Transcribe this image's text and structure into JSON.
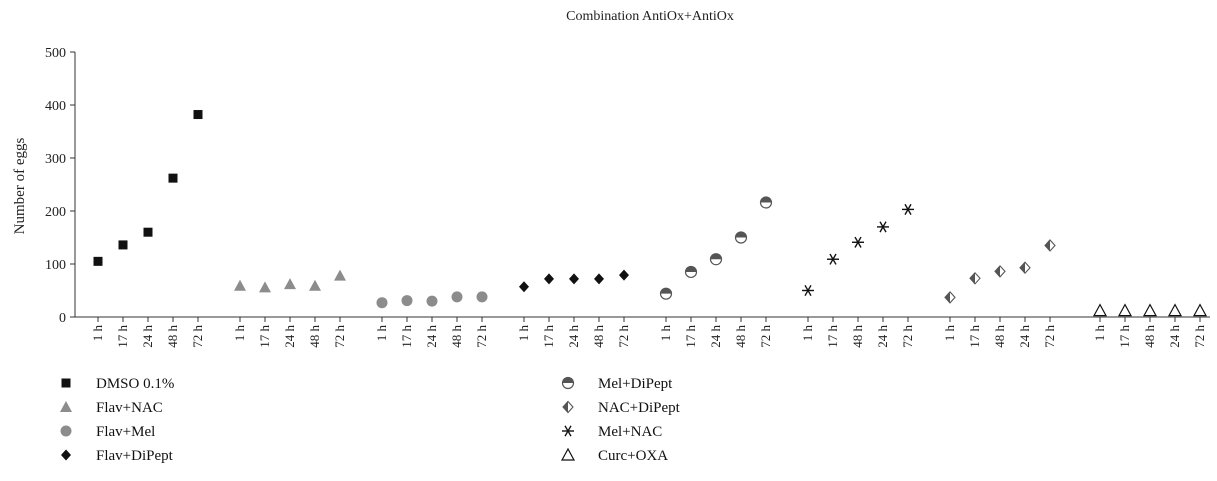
{
  "chart_data": {
    "type": "scatter",
    "title": "Combination AntiOx+AntiOx",
    "ylabel": "Number of eggs",
    "xlabel": "",
    "ylim": [
      0,
      500
    ],
    "yticks": [
      0,
      100,
      200,
      300,
      400,
      500
    ],
    "legend_position": "bottom-left",
    "grid": false,
    "series": [
      {
        "name": "DMSO 0.1%",
        "marker": "square",
        "color": "#111111",
        "categories": [
          "1 h",
          "17 h",
          "24 h",
          "48 h",
          "72 h"
        ],
        "values": [
          105,
          136,
          160,
          262,
          382
        ]
      },
      {
        "name": "Flav+NAC",
        "marker": "triangle",
        "color": "#8c8c8c",
        "categories": [
          "1 h",
          "17 h",
          "24 h",
          "48 h",
          "72 h"
        ],
        "values": [
          59,
          56,
          62,
          59,
          78
        ]
      },
      {
        "name": "Flav+Mel",
        "marker": "circle",
        "color": "#8c8c8c",
        "categories": [
          "1 h",
          "17 h",
          "24 h",
          "48 h",
          "72 h"
        ],
        "values": [
          27,
          31,
          30,
          38,
          38
        ]
      },
      {
        "name": "Flav+DiPept",
        "marker": "diamond",
        "color": "#111111",
        "categories": [
          "1 h",
          "17 h",
          "24 h",
          "48 h",
          "72 h"
        ],
        "values": [
          57,
          72,
          72,
          72,
          79
        ]
      },
      {
        "name": "Mel+DiPept",
        "marker": "half-circle",
        "color": "#555555",
        "categories": [
          "1 h",
          "17 h",
          "24 h",
          "48 h",
          "72 h"
        ],
        "values": [
          44,
          85,
          109,
          150,
          216
        ]
      },
      {
        "name": "Mel+NAC",
        "marker": "asterisk",
        "color": "#111111",
        "categories": [
          "1 h",
          "17 h",
          "48 h",
          "24 h",
          "72 h"
        ],
        "values": [
          50,
          109,
          141,
          170,
          203
        ]
      },
      {
        "name": "NAC+DiPept",
        "marker": "half-diamond",
        "color": "#555555",
        "categories": [
          "1 h",
          "17 h",
          "48 h",
          "24 h",
          "72 h"
        ],
        "values": [
          37,
          73,
          86,
          93,
          135
        ]
      },
      {
        "name": "Curc+OXA",
        "marker": "open-triangle",
        "color": "#111111",
        "categories": [
          "1 h",
          "17 h",
          "48 h",
          "24 h",
          "72 h"
        ],
        "values": [
          12,
          12,
          12,
          12,
          12
        ]
      }
    ],
    "legend_order": [
      "DMSO 0.1%",
      "Flav+NAC",
      "Flav+Mel",
      "Flav+DiPept",
      "Mel+DiPept",
      "NAC+DiPept",
      "Mel+NAC",
      "Curc+OXA"
    ]
  }
}
